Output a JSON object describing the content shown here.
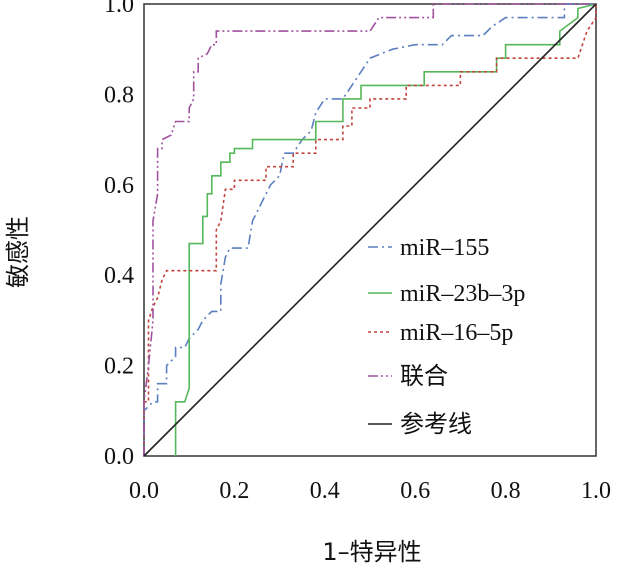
{
  "chart_data": {
    "type": "line",
    "xlabel": "1–特异性",
    "ylabel": "敏感性",
    "xlim": [
      0,
      1
    ],
    "ylim": [
      0,
      1
    ],
    "x_ticks": [
      "0.0",
      "0.2",
      "0.4",
      "0.6",
      "0.8",
      "1.0"
    ],
    "y_ticks": [
      "0.0",
      "0.2",
      "0.4",
      "0.6",
      "0.8",
      "1.0"
    ],
    "legend_position": "lower-right",
    "series": [
      {
        "name": "miR–155",
        "color": "#5c7fbf",
        "dash": "10 4 2 4",
        "points": [
          [
            0,
            0
          ],
          [
            0,
            0.1
          ],
          [
            0.02,
            0.12
          ],
          [
            0.03,
            0.12
          ],
          [
            0.03,
            0.16
          ],
          [
            0.05,
            0.16
          ],
          [
            0.05,
            0.2
          ],
          [
            0.07,
            0.22
          ],
          [
            0.07,
            0.24
          ],
          [
            0.09,
            0.24
          ],
          [
            0.1,
            0.26
          ],
          [
            0.12,
            0.28
          ],
          [
            0.13,
            0.3
          ],
          [
            0.15,
            0.32
          ],
          [
            0.17,
            0.32
          ],
          [
            0.17,
            0.38
          ],
          [
            0.18,
            0.44
          ],
          [
            0.19,
            0.46
          ],
          [
            0.23,
            0.46
          ],
          [
            0.24,
            0.52
          ],
          [
            0.26,
            0.56
          ],
          [
            0.28,
            0.6
          ],
          [
            0.3,
            0.62
          ],
          [
            0.31,
            0.67
          ],
          [
            0.33,
            0.67
          ],
          [
            0.35,
            0.7
          ],
          [
            0.37,
            0.72
          ],
          [
            0.38,
            0.76
          ],
          [
            0.4,
            0.79
          ],
          [
            0.44,
            0.79
          ],
          [
            0.46,
            0.82
          ],
          [
            0.48,
            0.85
          ],
          [
            0.5,
            0.88
          ],
          [
            0.55,
            0.9
          ],
          [
            0.6,
            0.91
          ],
          [
            0.66,
            0.91
          ],
          [
            0.68,
            0.93
          ],
          [
            0.75,
            0.93
          ],
          [
            0.77,
            0.95
          ],
          [
            0.8,
            0.97
          ],
          [
            0.93,
            0.97
          ],
          [
            0.93,
            1
          ],
          [
            1,
            1
          ]
        ]
      },
      {
        "name": "miR–23b–3p",
        "color": "#55b85a",
        "dash": "",
        "points": [
          [
            0.07,
            0
          ],
          [
            0.07,
            0.12
          ],
          [
            0.09,
            0.12
          ],
          [
            0.1,
            0.15
          ],
          [
            0.1,
            0.47
          ],
          [
            0.13,
            0.47
          ],
          [
            0.13,
            0.53
          ],
          [
            0.14,
            0.53
          ],
          [
            0.14,
            0.58
          ],
          [
            0.15,
            0.58
          ],
          [
            0.15,
            0.62
          ],
          [
            0.17,
            0.62
          ],
          [
            0.17,
            0.65
          ],
          [
            0.19,
            0.65
          ],
          [
            0.19,
            0.67
          ],
          [
            0.2,
            0.67
          ],
          [
            0.2,
            0.68
          ],
          [
            0.24,
            0.68
          ],
          [
            0.24,
            0.7
          ],
          [
            0.38,
            0.7
          ],
          [
            0.38,
            0.74
          ],
          [
            0.44,
            0.74
          ],
          [
            0.44,
            0.79
          ],
          [
            0.48,
            0.79
          ],
          [
            0.48,
            0.82
          ],
          [
            0.62,
            0.82
          ],
          [
            0.62,
            0.85
          ],
          [
            0.78,
            0.85
          ],
          [
            0.78,
            0.88
          ],
          [
            0.8,
            0.88
          ],
          [
            0.8,
            0.91
          ],
          [
            0.92,
            0.91
          ],
          [
            0.92,
            0.94
          ],
          [
            0.96,
            0.97
          ],
          [
            0.96,
            0.99
          ],
          [
            1,
            1
          ]
        ]
      },
      {
        "name": "miR–16–5p",
        "color": "#c0443c",
        "dash": "3 3",
        "points": [
          [
            0,
            0
          ],
          [
            0,
            0.12
          ],
          [
            0.01,
            0.12
          ],
          [
            0.01,
            0.3
          ],
          [
            0.02,
            0.33
          ],
          [
            0.03,
            0.35
          ],
          [
            0.04,
            0.39
          ],
          [
            0.05,
            0.41
          ],
          [
            0.16,
            0.41
          ],
          [
            0.16,
            0.5
          ],
          [
            0.17,
            0.52
          ],
          [
            0.18,
            0.59
          ],
          [
            0.2,
            0.59
          ],
          [
            0.2,
            0.61
          ],
          [
            0.27,
            0.61
          ],
          [
            0.27,
            0.64
          ],
          [
            0.33,
            0.64
          ],
          [
            0.33,
            0.67
          ],
          [
            0.38,
            0.67
          ],
          [
            0.38,
            0.7
          ],
          [
            0.44,
            0.7
          ],
          [
            0.44,
            0.73
          ],
          [
            0.46,
            0.73
          ],
          [
            0.46,
            0.77
          ],
          [
            0.5,
            0.77
          ],
          [
            0.5,
            0.79
          ],
          [
            0.58,
            0.79
          ],
          [
            0.58,
            0.82
          ],
          [
            0.7,
            0.82
          ],
          [
            0.7,
            0.85
          ],
          [
            0.78,
            0.85
          ],
          [
            0.78,
            0.88
          ],
          [
            0.96,
            0.88
          ],
          [
            0.97,
            0.91
          ],
          [
            0.98,
            0.94
          ],
          [
            1,
            0.97
          ],
          [
            1,
            1
          ]
        ]
      },
      {
        "name": "联合",
        "color": "#a0529e",
        "dash": "10 3 2 3 2 3",
        "points": [
          [
            0,
            0
          ],
          [
            0,
            0.12
          ],
          [
            0.01,
            0.2
          ],
          [
            0.02,
            0.3
          ],
          [
            0.02,
            0.4
          ],
          [
            0.02,
            0.52
          ],
          [
            0.03,
            0.58
          ],
          [
            0.03,
            0.68
          ],
          [
            0.04,
            0.68
          ],
          [
            0.04,
            0.7
          ],
          [
            0.06,
            0.71
          ],
          [
            0.07,
            0.74
          ],
          [
            0.1,
            0.74
          ],
          [
            0.1,
            0.77
          ],
          [
            0.11,
            0.79
          ],
          [
            0.11,
            0.85
          ],
          [
            0.12,
            0.85
          ],
          [
            0.12,
            0.88
          ],
          [
            0.14,
            0.89
          ],
          [
            0.15,
            0.91
          ],
          [
            0.16,
            0.91
          ],
          [
            0.16,
            0.94
          ],
          [
            0.5,
            0.94
          ],
          [
            0.52,
            0.97
          ],
          [
            0.64,
            0.97
          ],
          [
            0.64,
            1
          ],
          [
            1,
            1
          ]
        ]
      },
      {
        "name": "参考线",
        "color": "#222222",
        "dash": "",
        "points": [
          [
            0,
            0
          ],
          [
            1,
            1
          ]
        ]
      }
    ]
  }
}
